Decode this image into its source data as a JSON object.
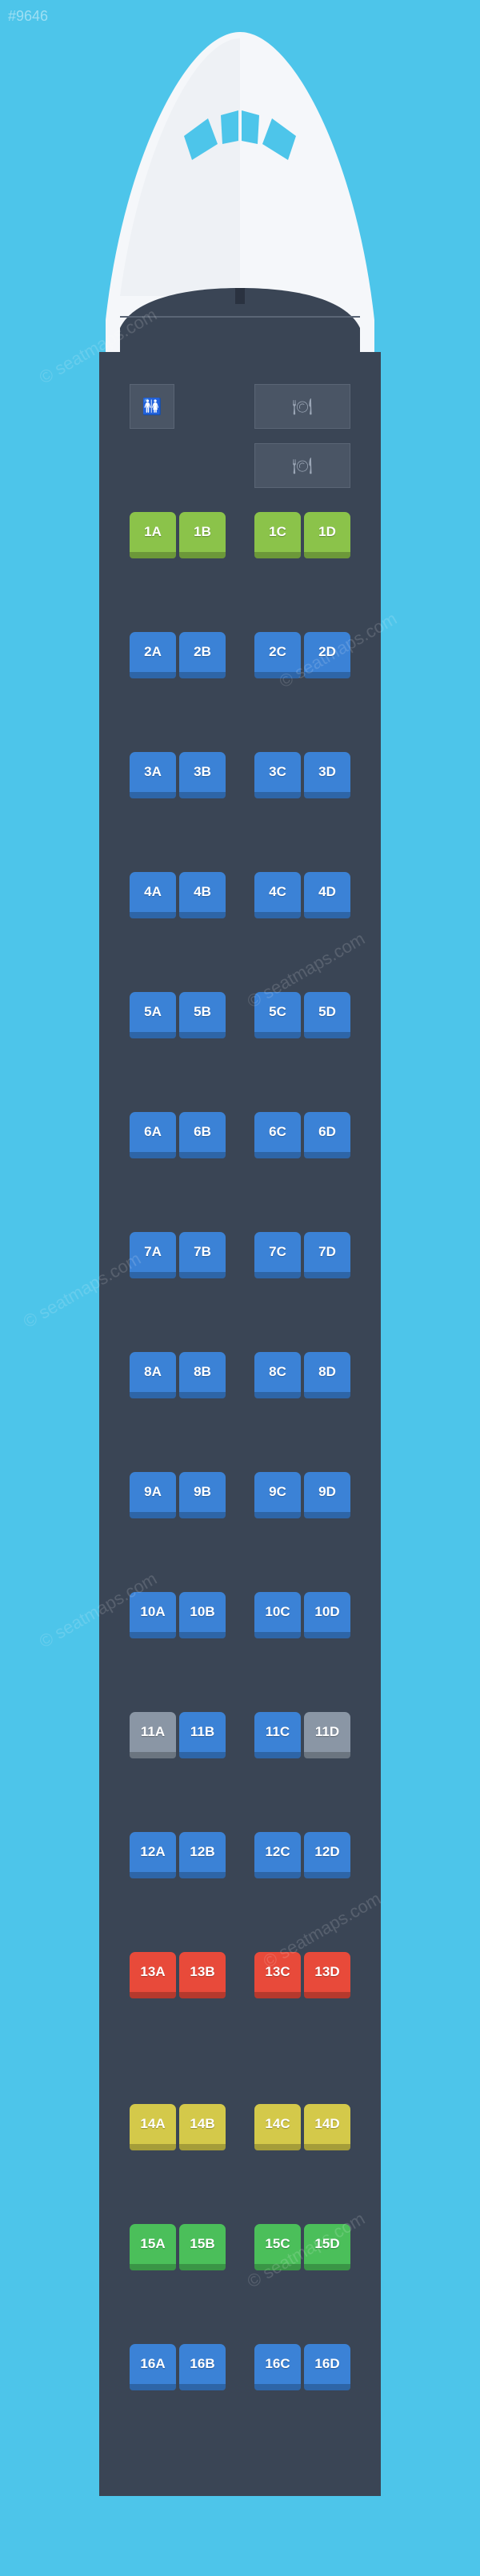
{
  "id_tag": "#9646",
  "watermark_text": "© seatmaps.com",
  "background_color": "#4dc5ea",
  "fuselage_color": "#3a4555",
  "nose_fill": "#f5f7fa",
  "seat_colors": {
    "green": "#8bc34a",
    "blue": "#3b82d6",
    "grey": "#8a96a5",
    "red": "#e84a3a",
    "yellow": "#d4c94a",
    "brightgreen": "#4bbf5a"
  },
  "seat_size": {
    "w": 58,
    "h": 58,
    "radius": 7,
    "font_size": 17
  },
  "row_spacing": 92,
  "aisle_gap": 40,
  "layout": {
    "left_cols": [
      "A",
      "B"
    ],
    "right_cols": [
      "C",
      "D"
    ]
  },
  "service": {
    "lav_icon": "🚻",
    "galley_icon": "🍽",
    "galley2_icon": "🍽"
  },
  "rows": [
    {
      "n": 1,
      "color": "green",
      "exit_before": false
    },
    {
      "n": 2,
      "color": "blue"
    },
    {
      "n": 3,
      "color": "blue"
    },
    {
      "n": 4,
      "color": "blue"
    },
    {
      "n": 5,
      "color": "blue"
    },
    {
      "n": 6,
      "color": "blue"
    },
    {
      "n": 7,
      "color": "blue"
    },
    {
      "n": 8,
      "color": "blue"
    },
    {
      "n": 9,
      "color": "blue"
    },
    {
      "n": 10,
      "color": "blue"
    },
    {
      "n": 11,
      "color": "grey",
      "special": {
        "B": "blue",
        "C": "blue"
      }
    },
    {
      "n": 12,
      "color": "blue"
    },
    {
      "n": 13,
      "color": "red"
    },
    {
      "n": 14,
      "color": "yellow",
      "exit_before": true
    },
    {
      "n": 15,
      "color": "brightgreen"
    },
    {
      "n": 16,
      "color": "blue"
    }
  ]
}
